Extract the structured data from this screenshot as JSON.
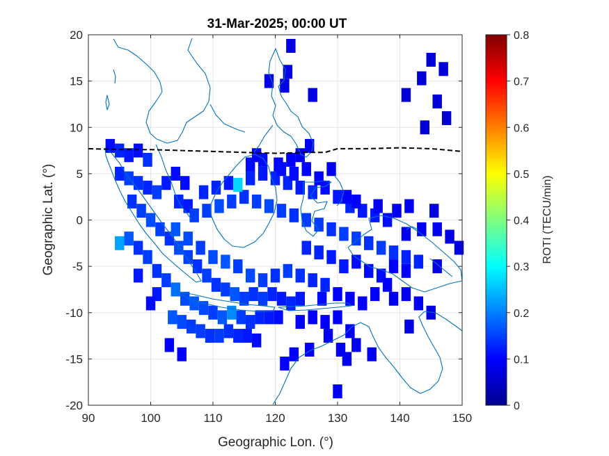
{
  "chart_data": {
    "type": "heatmap",
    "title": "31-Mar-2025; 00:00 UT",
    "xlabel": "Geographic Lon. (°)",
    "ylabel": "Geographic Lat. (°)",
    "colorbar_label": "ROTI (TECU/min)",
    "xlim": [
      90,
      150
    ],
    "ylim": [
      -20,
      20
    ],
    "xticks": [
      "90",
      "100",
      "110",
      "120",
      "130",
      "140",
      "150"
    ],
    "yticks": [
      "20",
      "15",
      "10",
      "5",
      "0",
      "-5",
      "-10",
      "-15",
      "-20"
    ],
    "colorbar_range": [
      0,
      0.8
    ],
    "colorbar_ticks": [
      "0.8",
      "0.7",
      "0.6",
      "0.5",
      "0.4",
      "0.3",
      "0.2",
      "0.1",
      "0"
    ],
    "colormap": "jet",
    "grid": true,
    "magnetic_equator": {
      "style": "black dashed",
      "lon": [
        90,
        95,
        100,
        105,
        110,
        115,
        120,
        125,
        128,
        130,
        135,
        140,
        145,
        150
      ],
      "lat": [
        7.7,
        7.6,
        7.6,
        7.5,
        7.4,
        7.3,
        7.2,
        7.3,
        7.3,
        7.7,
        7.7,
        7.8,
        7.7,
        7.4
      ]
    },
    "coastline_color": "#0072BD",
    "roti_cells_lon_lat_value": [
      [
        93.5,
        8,
        0.06
      ],
      [
        95,
        7.5,
        0.08
      ],
      [
        96.5,
        7,
        0.07
      ],
      [
        98,
        7.5,
        0.06
      ],
      [
        99.5,
        6.5,
        0.09
      ],
      [
        95,
        5,
        0.08
      ],
      [
        96.5,
        4.5,
        0.1
      ],
      [
        98,
        4,
        0.09
      ],
      [
        99.5,
        3.5,
        0.08
      ],
      [
        101,
        3,
        0.1
      ],
      [
        102.5,
        4,
        0.07
      ],
      [
        104,
        5,
        0.06
      ],
      [
        105.5,
        4,
        0.06
      ],
      [
        104.5,
        2,
        0.08
      ],
      [
        106,
        1.5,
        0.07
      ],
      [
        97,
        2,
        0.09
      ],
      [
        98.5,
        1,
        0.1
      ],
      [
        100,
        0,
        0.11
      ],
      [
        101.5,
        -1,
        0.1
      ],
      [
        103,
        -2,
        0.09
      ],
      [
        104.5,
        -3,
        0.11
      ],
      [
        106,
        -4,
        0.1
      ],
      [
        107.5,
        -5,
        0.09
      ],
      [
        109,
        -6,
        0.1
      ],
      [
        110.5,
        -7,
        0.09
      ],
      [
        112,
        -7.5,
        0.1
      ],
      [
        113.5,
        -8,
        0.12
      ],
      [
        115,
        -8.5,
        0.1
      ],
      [
        116.5,
        -8,
        0.09
      ],
      [
        118,
        -8.5,
        0.1
      ],
      [
        119.5,
        -8,
        0.08
      ],
      [
        121,
        -8.5,
        0.07
      ],
      [
        122.5,
        -9,
        0.08
      ],
      [
        124,
        -8.5,
        0.07
      ],
      [
        95,
        -2.5,
        0.18
      ],
      [
        96.5,
        -2,
        0.12
      ],
      [
        98,
        -3,
        0.09
      ],
      [
        99.5,
        -4,
        0.1
      ],
      [
        101,
        -5.5,
        0.09
      ],
      [
        102.5,
        -6.5,
        0.1
      ],
      [
        104,
        -7.5,
        0.14
      ],
      [
        105.5,
        -8.5,
        0.11
      ],
      [
        107,
        -9,
        0.12
      ],
      [
        108.5,
        -9.5,
        0.11
      ],
      [
        110,
        -10,
        0.1
      ],
      [
        111.5,
        -10.5,
        0.12
      ],
      [
        113,
        -10,
        0.16
      ],
      [
        114.5,
        -10.5,
        0.1
      ],
      [
        116,
        -11,
        0.09
      ],
      [
        117.5,
        -10.5,
        0.08
      ],
      [
        119,
        -10.5,
        0.07
      ],
      [
        120.5,
        -10.5,
        0.06
      ],
      [
        103.5,
        -10.5,
        0.12
      ],
      [
        105,
        -11,
        0.11
      ],
      [
        106.5,
        -11.5,
        0.1
      ],
      [
        108,
        -12,
        0.1
      ],
      [
        109.5,
        -12.5,
        0.09
      ],
      [
        111,
        -12.5,
        0.1
      ],
      [
        112.5,
        -12,
        0.09
      ],
      [
        114,
        -12.5,
        0.08
      ],
      [
        115.5,
        -12.5,
        0.07
      ],
      [
        117,
        -13,
        0.06
      ],
      [
        103,
        -13.5,
        0.05
      ],
      [
        105,
        -14.5,
        0.05
      ],
      [
        101,
        -8,
        0.07
      ],
      [
        98,
        -6,
        0.07
      ],
      [
        100,
        -9,
        0.06
      ],
      [
        104,
        -1,
        0.12
      ],
      [
        106,
        -2,
        0.11
      ],
      [
        108,
        -3,
        0.1
      ],
      [
        110,
        -4,
        0.11
      ],
      [
        112,
        -4.5,
        0.12
      ],
      [
        114,
        -5,
        0.1
      ],
      [
        116,
        -6,
        0.11
      ],
      [
        118,
        -6.5,
        0.1
      ],
      [
        120,
        -6,
        0.09
      ],
      [
        122,
        -5.5,
        0.1
      ],
      [
        124,
        -6,
        0.09
      ],
      [
        126,
        -6.5,
        0.08
      ],
      [
        128,
        -7,
        0.08
      ],
      [
        107,
        0.5,
        0.1
      ],
      [
        109,
        1,
        0.1
      ],
      [
        111,
        1.5,
        0.11
      ],
      [
        113,
        2,
        0.1
      ],
      [
        115,
        2.5,
        0.09
      ],
      [
        117,
        2,
        0.1
      ],
      [
        119,
        1.5,
        0.11
      ],
      [
        121,
        1,
        0.1
      ],
      [
        123,
        0.5,
        0.09
      ],
      [
        125,
        0,
        0.1
      ],
      [
        127,
        -0.5,
        0.1
      ],
      [
        129,
        -1,
        0.09
      ],
      [
        131,
        -1.5,
        0.1
      ],
      [
        133,
        -2,
        0.1
      ],
      [
        135,
        -2.5,
        0.09
      ],
      [
        137,
        -3,
        0.1
      ],
      [
        139,
        -3.5,
        0.09
      ],
      [
        141,
        -4,
        0.08
      ],
      [
        143,
        -4.5,
        0.08
      ],
      [
        108.5,
        3,
        0.08
      ],
      [
        110.5,
        3.5,
        0.08
      ],
      [
        112.5,
        4,
        0.07
      ],
      [
        114,
        3.8,
        0.22
      ],
      [
        116,
        4.5,
        0.08
      ],
      [
        118,
        5,
        0.07
      ],
      [
        120,
        4.5,
        0.08
      ],
      [
        122,
        4,
        0.08
      ],
      [
        124,
        3.5,
        0.07
      ],
      [
        126,
        3,
        0.08
      ],
      [
        128,
        3.5,
        0.06
      ],
      [
        130,
        2.5,
        0.07
      ],
      [
        132,
        1.5,
        0.08
      ],
      [
        134,
        1,
        0.07
      ],
      [
        136,
        0.5,
        0.07
      ],
      [
        138,
        0,
        0.06
      ],
      [
        131.5,
        2.5,
        0.05
      ],
      [
        133,
        2,
        0.05
      ],
      [
        116,
        6,
        0.06
      ],
      [
        118,
        6.5,
        0.06
      ],
      [
        120.5,
        6,
        0.05
      ],
      [
        122.5,
        6.5,
        0.05
      ],
      [
        117,
        7,
        0.05
      ],
      [
        121,
        5.5,
        0.06
      ],
      [
        123,
        5,
        0.06
      ],
      [
        125,
        5.5,
        0.05
      ],
      [
        127,
        4.5,
        0.05
      ],
      [
        129,
        5.5,
        0.04
      ],
      [
        124,
        7,
        0.04
      ],
      [
        125.5,
        8,
        0.04
      ],
      [
        121.5,
        14.5,
        0.03
      ],
      [
        119,
        15,
        0.03
      ],
      [
        122,
        16,
        0.03
      ],
      [
        122.5,
        18.8,
        0.03
      ],
      [
        126,
        13.5,
        0.03
      ],
      [
        141,
        13.5,
        0.02
      ],
      [
        145,
        17.3,
        0.02
      ],
      [
        147,
        16.3,
        0.02
      ],
      [
        143.5,
        15.3,
        0.02
      ],
      [
        146,
        12.8,
        0.02
      ],
      [
        147.5,
        11,
        0.02
      ],
      [
        144,
        10,
        0.02
      ],
      [
        136.5,
        1.5,
        0.04
      ],
      [
        139.5,
        1,
        0.04
      ],
      [
        141.5,
        1.5,
        0.04
      ],
      [
        145.5,
        1,
        0.03
      ],
      [
        141,
        -1.5,
        0.04
      ],
      [
        143.5,
        -1,
        0.04
      ],
      [
        146,
        -1,
        0.04
      ],
      [
        148,
        -1.8,
        0.03
      ],
      [
        146,
        -5,
        0.03
      ],
      [
        149.5,
        -3,
        0.03
      ],
      [
        129,
        -4,
        0.07
      ],
      [
        131,
        -5,
        0.07
      ],
      [
        133,
        -4.5,
        0.06
      ],
      [
        135,
        -5.5,
        0.06
      ],
      [
        137,
        -6,
        0.06
      ],
      [
        139,
        -5,
        0.05
      ],
      [
        141,
        -5.5,
        0.05
      ],
      [
        125,
        -3,
        0.08
      ],
      [
        127,
        -3.5,
        0.08
      ],
      [
        127.5,
        -8.5,
        0.06
      ],
      [
        130,
        -8,
        0.05
      ],
      [
        132,
        -8.5,
        0.05
      ],
      [
        134,
        -9,
        0.05
      ],
      [
        136,
        -8,
        0.05
      ],
      [
        138,
        -7,
        0.05
      ],
      [
        139,
        -8.5,
        0.04
      ],
      [
        141,
        -8,
        0.04
      ],
      [
        143,
        -9,
        0.04
      ],
      [
        145,
        -10,
        0.03
      ],
      [
        141.5,
        -11.5,
        0.03
      ],
      [
        124,
        -11,
        0.05
      ],
      [
        126,
        -10.5,
        0.05
      ],
      [
        128,
        -11,
        0.05
      ],
      [
        130,
        -10.5,
        0.05
      ],
      [
        132,
        -12,
        0.04
      ],
      [
        128.5,
        -12.5,
        0.04
      ],
      [
        133,
        -13.5,
        0.04
      ],
      [
        125.5,
        -14,
        0.04
      ],
      [
        130.5,
        -14,
        0.04
      ],
      [
        131.5,
        -15,
        0.04
      ],
      [
        135.5,
        -14.5,
        0.04
      ],
      [
        123,
        -14.5,
        0.05
      ],
      [
        121.5,
        -15.5,
        0.05
      ],
      [
        130,
        -18.5,
        0.04
      ]
    ]
  }
}
